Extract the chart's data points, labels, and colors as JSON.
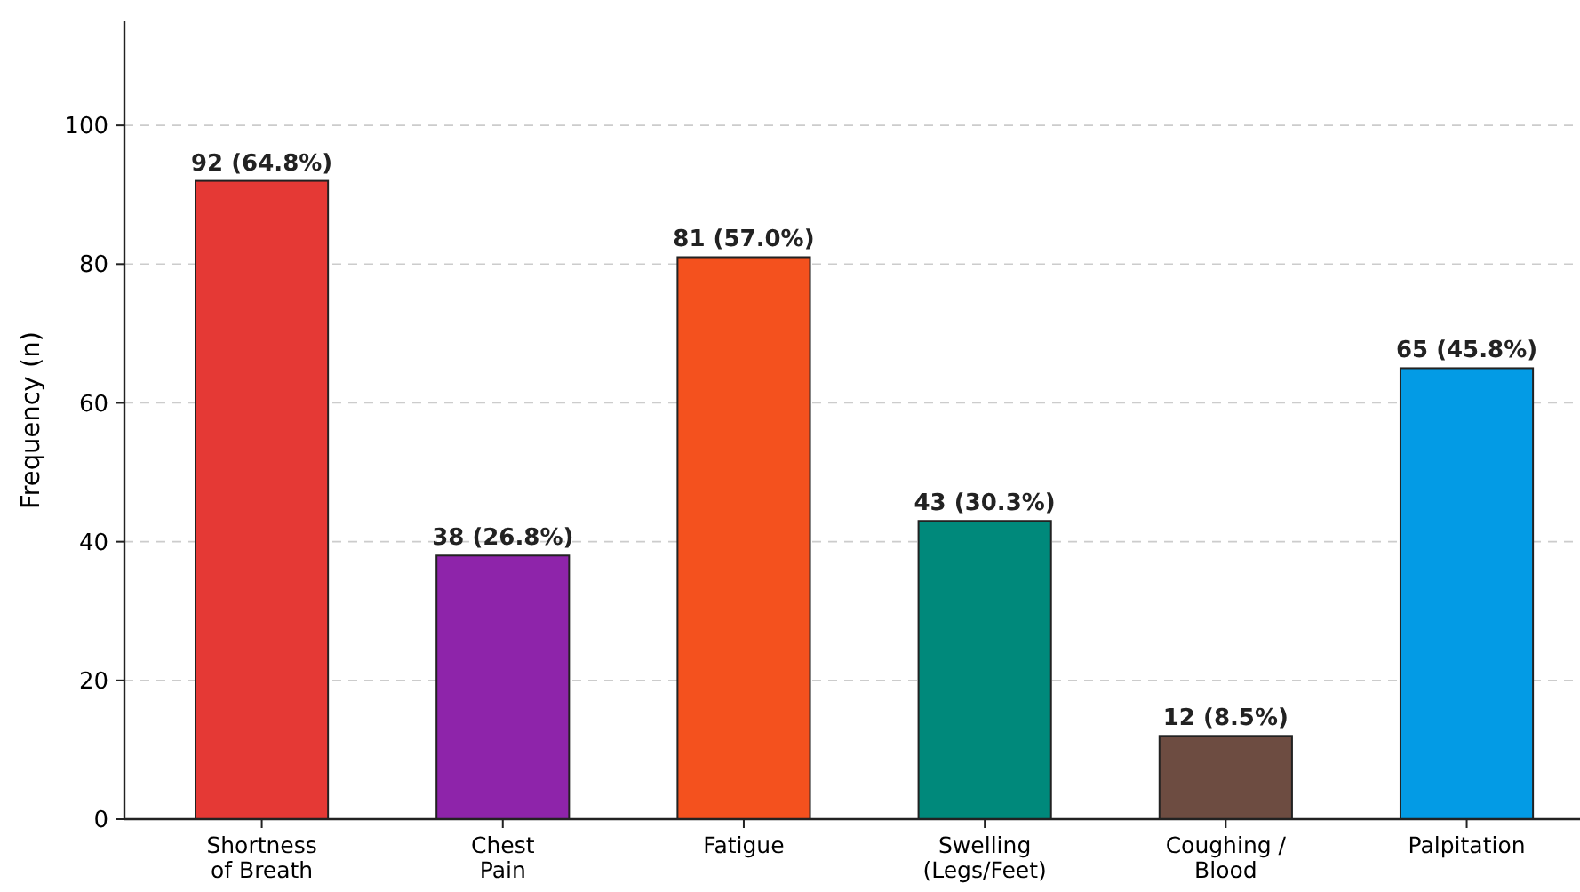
{
  "chart_data": {
    "type": "bar",
    "ylabel": "Frequency (n)",
    "categories": [
      "Shortness\nof Breath",
      "Chest\nPain",
      "Fatigue",
      "Swelling\n(Legs/Feet)",
      "Coughing /\nBlood",
      "Palpitation"
    ],
    "values": [
      92,
      38,
      81,
      43,
      12,
      65
    ],
    "colors": [
      "#e53935",
      "#8e24aa",
      "#f4511e",
      "#00897b",
      "#6d4c41",
      "#039be5"
    ],
    "value_labels": [
      "92 (64.8%)",
      "38 (26.8%)",
      "81 (57.0%)",
      "43 (30.3%)",
      "12 (8.5%)",
      "65 (45.8%)"
    ],
    "ylim": [
      0,
      115
    ],
    "yticks": [
      0,
      20,
      40,
      60,
      80,
      100
    ],
    "grid": "y"
  }
}
